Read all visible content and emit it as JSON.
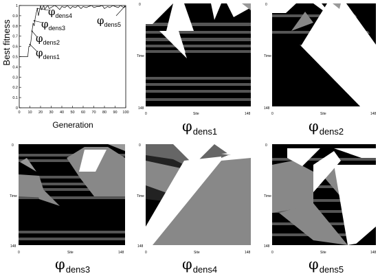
{
  "chart_data": {
    "type": "line",
    "title": "",
    "xlabel": "Generation",
    "ylabel": "Best fitness",
    "xlim": [
      0,
      100
    ],
    "ylim": [
      0,
      1
    ],
    "x_ticks": [
      "0",
      "10",
      "20",
      "30",
      "40",
      "50",
      "60",
      "70",
      "80",
      "90",
      "100"
    ],
    "y_ticks": [
      "0",
      "0.1",
      "0.2",
      "0.3",
      "0.4",
      "0.5",
      "0.6",
      "0.7",
      "0.8",
      "0.9",
      "1"
    ],
    "series": [
      {
        "x": [
          0,
          1,
          5,
          8,
          9,
          10,
          11,
          12,
          13,
          14,
          15,
          16,
          17,
          18,
          19,
          20,
          21,
          22,
          23,
          24,
          25,
          27,
          28,
          30,
          33,
          35,
          38,
          40,
          43,
          45,
          48,
          50,
          53,
          55,
          58,
          60,
          63,
          65,
          68,
          70,
          73,
          75,
          78,
          80,
          83,
          85,
          88,
          90,
          93,
          95,
          98,
          100
        ],
        "values": [
          0.5,
          0.5,
          0.5,
          0.5,
          0.6,
          0.6,
          0.65,
          0.75,
          0.83,
          0.8,
          0.88,
          0.93,
          0.97,
          0.9,
          0.95,
          1.0,
          0.96,
          0.98,
          1.0,
          0.96,
          0.98,
          1.0,
          0.97,
          0.98,
          1.0,
          0.99,
          0.96,
          0.99,
          0.98,
          1.0,
          0.97,
          0.99,
          0.98,
          1.0,
          0.97,
          0.99,
          0.98,
          0.99,
          1.0,
          0.98,
          0.99,
          0.99,
          1.0,
          0.97,
          0.99,
          0.98,
          1.0,
          0.99,
          0.98,
          1.0,
          0.98,
          0.99
        ]
      }
    ],
    "annotations": [
      {
        "phi": "φ",
        "sub": "dens4",
        "x": 17,
        "y": 0.97
      },
      {
        "phi": "φ",
        "sub": "dens3",
        "x": 14,
        "y": 0.85
      },
      {
        "phi": "φ",
        "sub": "dens2",
        "x": 12,
        "y": 0.75
      },
      {
        "phi": "φ",
        "sub": "dens1",
        "x": 10,
        "y": 0.62
      },
      {
        "phi": "φ",
        "sub": "dens5",
        "x": 99,
        "y": 0.99
      }
    ]
  },
  "diagrams": [
    {
      "id": "d1",
      "phi": "φ",
      "sub": "dens1",
      "time_label": "Time",
      "site_label": "Site",
      "site_start": "0",
      "site_end": "148",
      "time_end": "148"
    },
    {
      "id": "d2",
      "phi": "φ",
      "sub": "dens2",
      "time_label": "Time",
      "site_label": "Site",
      "site_start": "0",
      "site_end": "148",
      "time_end": "148"
    },
    {
      "id": "d3",
      "phi": "φ",
      "sub": "dens3",
      "time_label": "Time",
      "site_label": "Site",
      "site_start": "0",
      "site_end": "148",
      "time_end": "148"
    },
    {
      "id": "d4",
      "phi": "φ",
      "sub": "dens4",
      "time_label": "Time",
      "site_label": "Site",
      "site_start": "0",
      "site_end": "148",
      "time_end": "148"
    },
    {
      "id": "d5",
      "phi": "φ",
      "sub": "dens5",
      "time_label": "Time",
      "site_label": "Site",
      "site_start": "0",
      "site_end": "148",
      "time_end": "148"
    }
  ]
}
